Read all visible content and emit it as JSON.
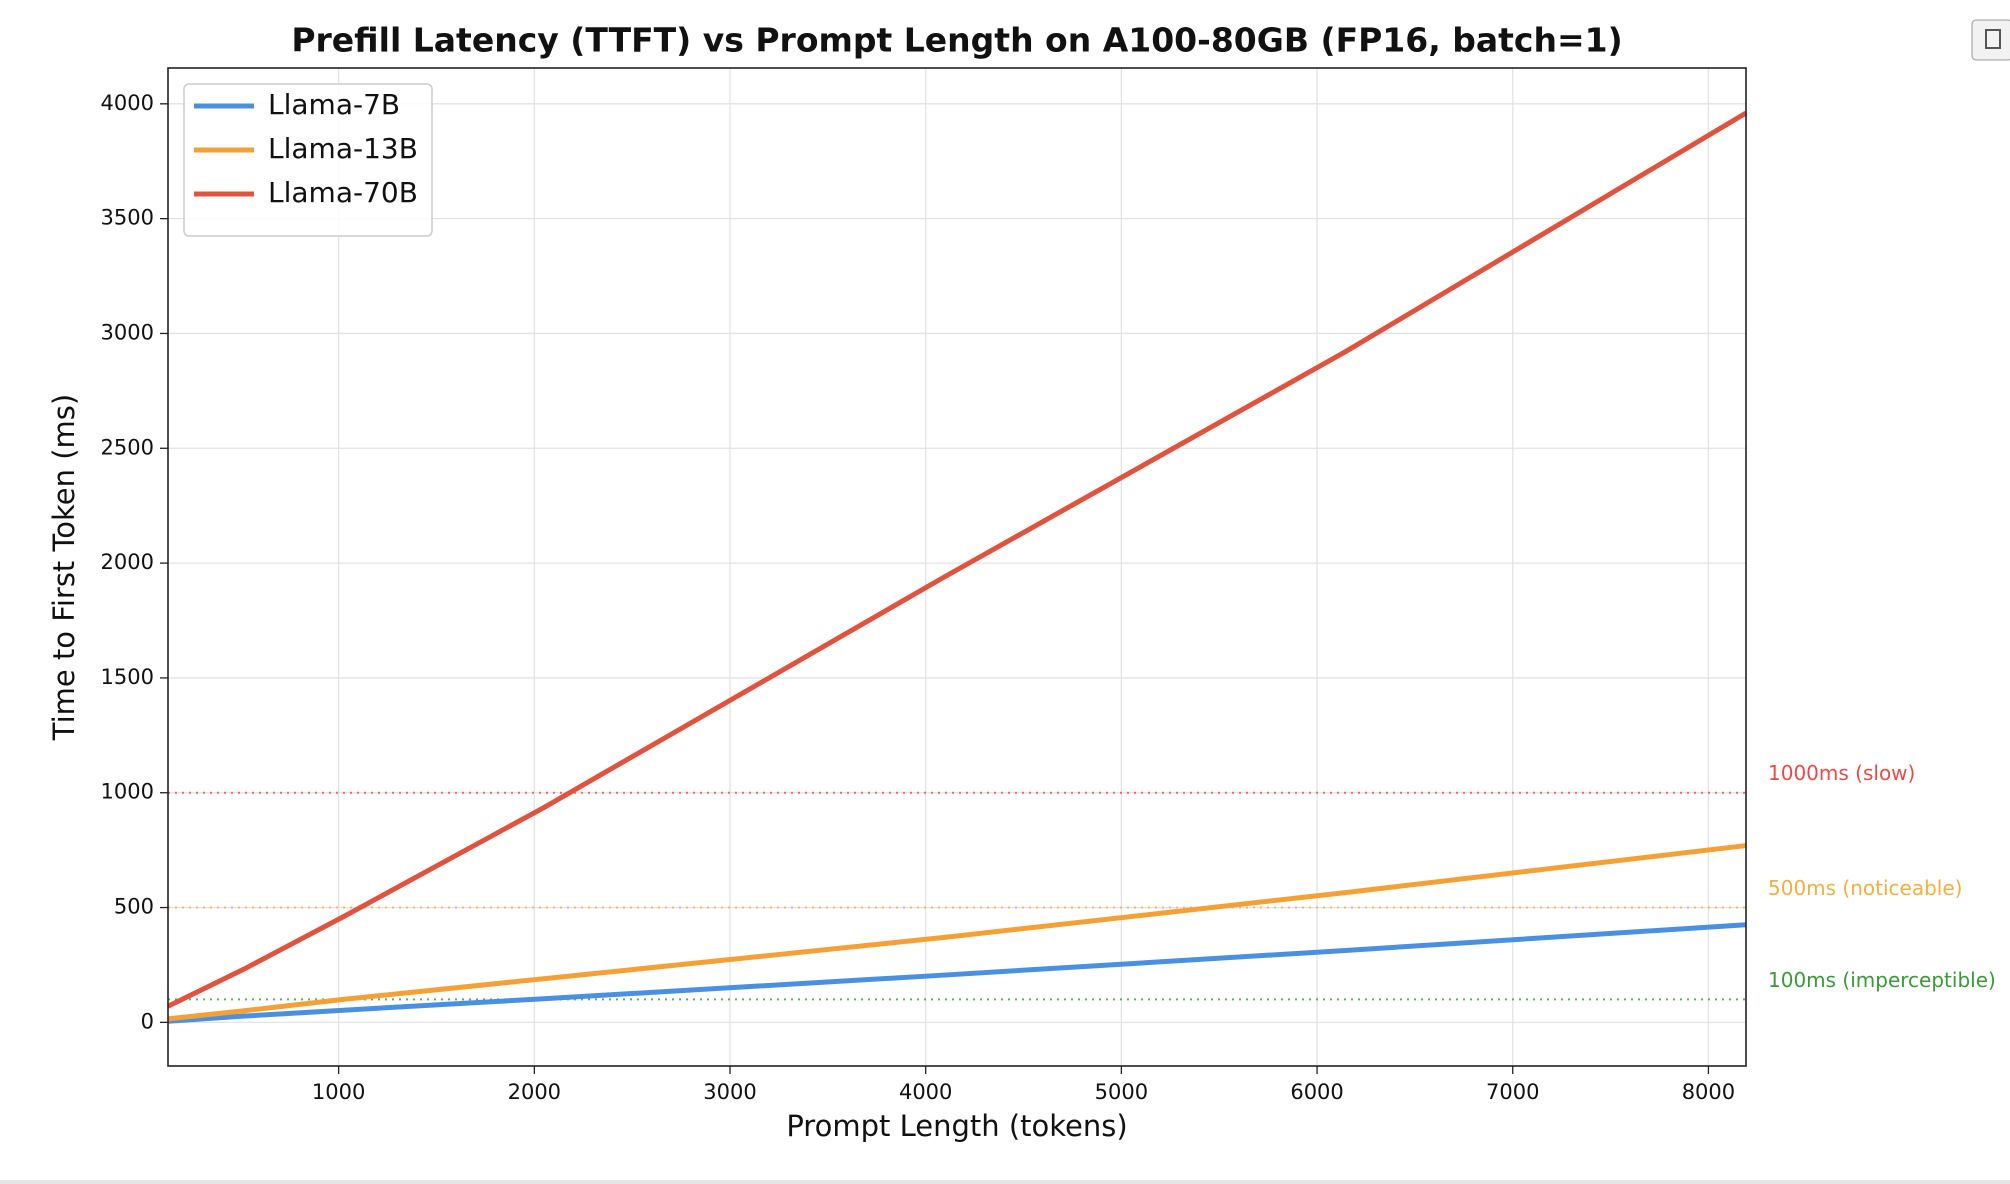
{
  "chart_data": {
    "type": "line",
    "title": "Prefill Latency (TTFT) vs Prompt Length on A100-80GB (FP16, batch=1)",
    "x_label": "Prompt Length (tokens)",
    "y_label": "Time to First Token (ms)",
    "x": [
      128,
      512,
      1024,
      2048,
      4096,
      6144,
      8192
    ],
    "series": [
      {
        "name": "Llama-7B",
        "color": "#4a90e2",
        "values": [
          5,
          27,
          53,
          103,
          206,
          313,
          425
        ]
      },
      {
        "name": "Llama-13B",
        "color": "#f5a035",
        "values": [
          15,
          50,
          100,
          190,
          370,
          565,
          770
        ]
      },
      {
        "name": "Llama-70B",
        "color": "#e0533f",
        "values": [
          70,
          230,
          460,
          935,
          1940,
          2920,
          3960
        ]
      }
    ],
    "reference_lines": [
      {
        "value": 1000,
        "label": "1000ms (slow)",
        "color": "#e84a4a"
      },
      {
        "value": 500,
        "label": "500ms (noticeable)",
        "color": "#f0b040"
      },
      {
        "value": 100,
        "label": "100ms (imperceptible)",
        "color": "#3a9a3a"
      }
    ],
    "xlim": [
      128,
      8192
    ],
    "ylim": [
      -190,
      4156
    ],
    "xticks": [
      1000,
      2000,
      3000,
      4000,
      5000,
      6000,
      7000,
      8000
    ],
    "yticks": [
      0,
      500,
      1000,
      1500,
      2000,
      2500,
      3000,
      3500,
      4000
    ],
    "grid": true,
    "legend": "upper-left"
  }
}
